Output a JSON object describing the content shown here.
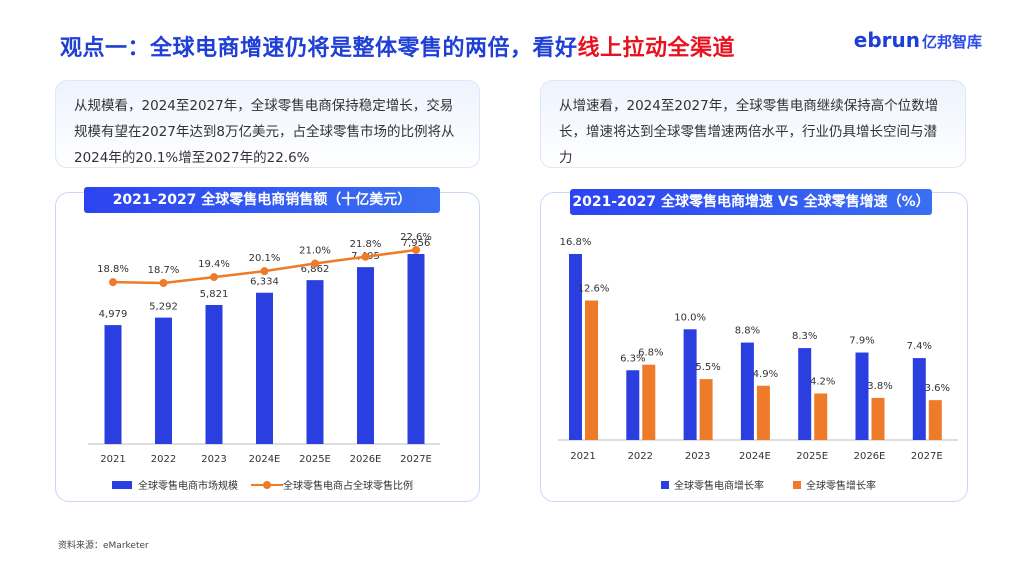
{
  "header": {
    "title_main": "观点一：全球电商增速仍将是整体零售的两倍，看好",
    "title_highlight": "线上拉动全渠道",
    "logo_text": "ebrun",
    "logo_cn": "亿邦智库"
  },
  "left_info": "从规模看，2024至2027年，全球零售电商保持稳定增长，交易规模有望在2027年达到8万亿美元，占全球零售市场的比例将从2024年的20.1%增至2027年的22.6%",
  "right_info": "从增速看，2024至2027年，全球零售电商继续保持高个位数增长，增速将达到全球零售增速两倍水平，行业仍具增长空间与潜力",
  "source": "资料来源：eMarketer",
  "colors": {
    "blue": "#2b3fe0",
    "orange": "#ee7b2a",
    "title_blue": "#1f3fd6",
    "highlight_red": "#e8121f"
  },
  "chart_data": [
    {
      "type": "bar",
      "title": "2021-2027 全球零售电商销售额（十亿美元）",
      "categories": [
        "2021",
        "2022",
        "2023",
        "2024E",
        "2025E",
        "2026E",
        "2027E"
      ],
      "series": [
        {
          "name": "全球零售电商市场规模",
          "type": "bar",
          "values": [
            4979,
            5292,
            5821,
            6334,
            6862,
            7405,
            7956
          ],
          "labels": [
            "4,979",
            "5,292",
            "5,821",
            "6,334",
            "6,862",
            "7,405",
            "7,956"
          ]
        },
        {
          "name": "全球零售电商占全球零售比例",
          "type": "line",
          "values": [
            18.8,
            18.7,
            19.4,
            20.1,
            21.0,
            21.8,
            22.6
          ],
          "labels": [
            "18.8%",
            "18.7%",
            "19.4%",
            "20.1%",
            "21.0%",
            "21.8%",
            "22.6%"
          ]
        }
      ],
      "legend_position": "bottom",
      "grid": false
    },
    {
      "type": "bar",
      "title": "2021-2027 全球零售电商增速 VS 全球零售增速（%）",
      "categories": [
        "2021",
        "2022",
        "2023",
        "2024E",
        "2025E",
        "2026E",
        "2027E"
      ],
      "series": [
        {
          "name": "全球零售电商增长率",
          "values": [
            16.8,
            6.3,
            10.0,
            8.8,
            8.3,
            7.9,
            7.4
          ],
          "labels": [
            "16.8%",
            "6.3%",
            "10.0%",
            "8.8%",
            "8.3%",
            "7.9%",
            "7.4%"
          ]
        },
        {
          "name": "全球零售增长率",
          "values": [
            12.6,
            6.8,
            5.5,
            4.9,
            4.2,
            3.8,
            3.6
          ],
          "labels": [
            "12.6%",
            "6.8%",
            "5.5%",
            "4.9%",
            "4.2%",
            "3.8%",
            "3.6%"
          ]
        }
      ],
      "legend_position": "bottom",
      "grid": false
    }
  ]
}
